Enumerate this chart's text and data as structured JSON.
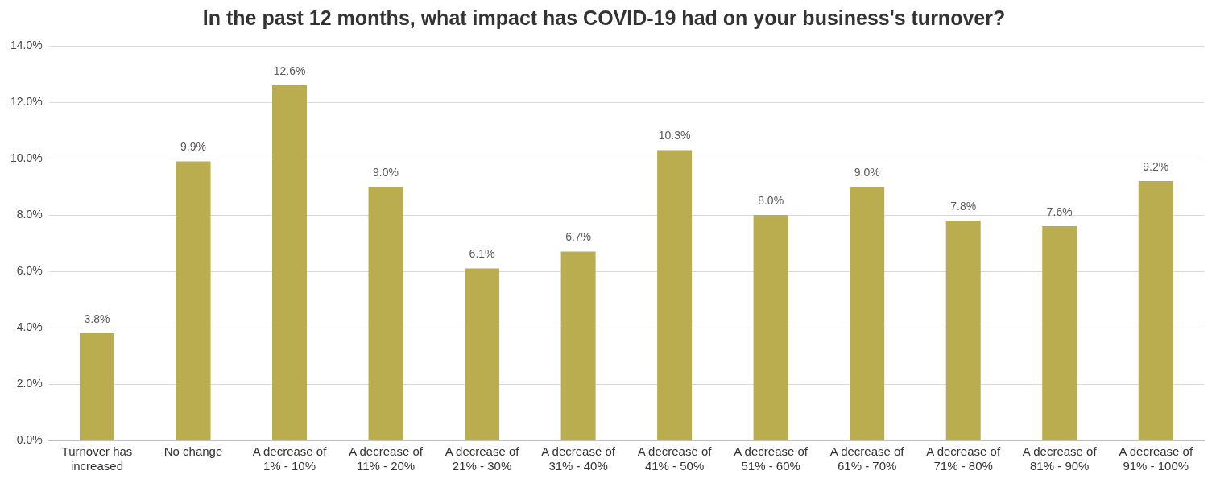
{
  "chart_data": {
    "type": "bar",
    "title": "In the past 12 months, what impact has COVID-19 had on your business's turnover?",
    "categories": [
      "Turnover has increased",
      "No change",
      "A decrease of 1% - 10%",
      "A decrease of 11% - 20%",
      "A decrease of 21% - 30%",
      "A decrease of 31% - 40%",
      "A decrease of 41% - 50%",
      "A decrease of 51% - 60%",
      "A decrease of 61% - 70%",
      "A decrease of 71% - 80%",
      "A decrease of 81% - 90%",
      "A decrease of 91% - 100%"
    ],
    "values": [
      3.8,
      9.9,
      12.6,
      9.0,
      6.1,
      6.7,
      10.3,
      8.0,
      9.0,
      7.8,
      7.6,
      9.2
    ],
    "value_labels": [
      "3.8%",
      "9.9%",
      "12.6%",
      "9.0%",
      "6.1%",
      "6.7%",
      "10.3%",
      "8.0%",
      "9.0%",
      "7.8%",
      "7.6%",
      "9.2%"
    ],
    "color": "#b9ad4f",
    "ylim": [
      0,
      14
    ],
    "yticks": [
      {
        "value": 0,
        "label": "0.0%"
      },
      {
        "value": 2,
        "label": "2.0%"
      },
      {
        "value": 4,
        "label": "4.0%"
      },
      {
        "value": 6,
        "label": "6.0%"
      },
      {
        "value": 8,
        "label": "8.0%"
      },
      {
        "value": 10,
        "label": "10.0%"
      },
      {
        "value": 12,
        "label": "12.0%"
      },
      {
        "value": 14,
        "label": "14.0%"
      }
    ],
    "grid": "y",
    "legend": false
  }
}
